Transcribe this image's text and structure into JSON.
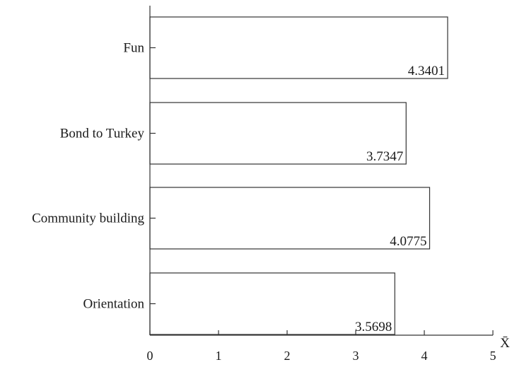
{
  "chart_data": {
    "type": "bar",
    "orientation": "horizontal",
    "title": "",
    "xlabel": "X̄",
    "ylabel": "",
    "categories": [
      "Fun",
      "Bond to Turkey",
      "Community building",
      "Orientation"
    ],
    "values": [
      4.3401,
      3.7347,
      4.0775,
      3.5698
    ],
    "value_labels": [
      "4.3401",
      "3.7347",
      "4.0775",
      "3.5698"
    ],
    "xlim": [
      0,
      5
    ],
    "xticks": [
      "0",
      "1",
      "2",
      "3",
      "4",
      "5"
    ],
    "grid": false,
    "legend": "none",
    "colors": {
      "bar_fill": "#ffffff",
      "bar_stroke": "#333333",
      "axis": "#333333",
      "text": "#1a1a1a"
    }
  }
}
